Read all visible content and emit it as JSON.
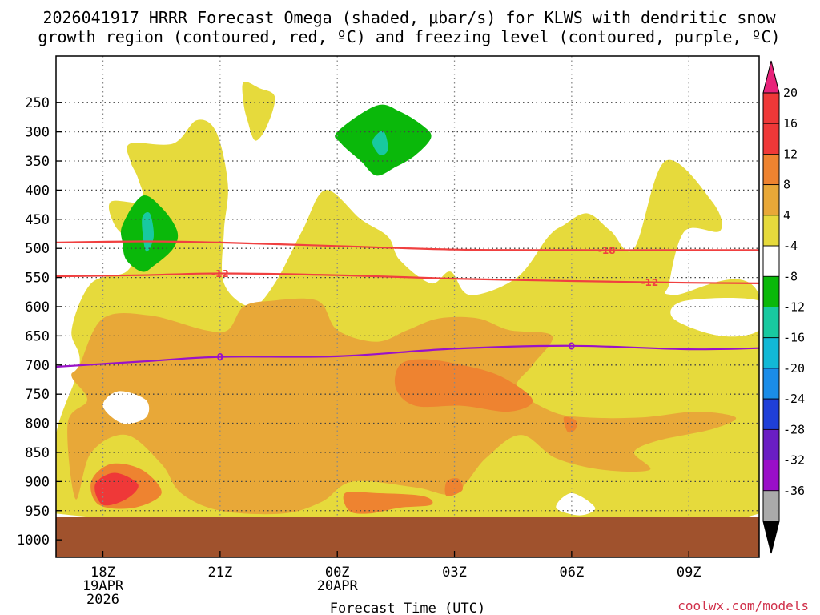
{
  "chart_data": {
    "type": "time-height contour",
    "title_line1": "2026041917 HRRR Forecast Omega (shaded, μbar/s) for KLWS with dendritic snow",
    "title_line2": "growth region (contoured, red, ºC) and freezing level (contoured, purple, ºC)",
    "xlabel": "Forecast Time (UTC)",
    "credit": "coolwx.com/models",
    "x_range_hours": [
      -1.2,
      16.8
    ],
    "y_range_hpa": [
      170,
      1030
    ],
    "x_ticks": [
      {
        "hour": 0,
        "lines": [
          "18Z",
          "19APR",
          "2026"
        ]
      },
      {
        "hour": 3,
        "lines": [
          "21Z"
        ]
      },
      {
        "hour": 6,
        "lines": [
          "00Z",
          "20APR"
        ]
      },
      {
        "hour": 9,
        "lines": [
          "03Z"
        ]
      },
      {
        "hour": 12,
        "lines": [
          "06Z"
        ]
      },
      {
        "hour": 15,
        "lines": [
          "09Z"
        ]
      }
    ],
    "y_ticks": [
      250,
      300,
      350,
      400,
      450,
      500,
      550,
      600,
      650,
      700,
      750,
      800,
      850,
      900,
      950,
      1000
    ],
    "ground_level_hpa": 960,
    "ground_color": "#a0522d",
    "omega_levels": [
      {
        "label": "20",
        "color": "#e8237a"
      },
      {
        "label": "16",
        "color": "#ef3838"
      },
      {
        "label": "12",
        "color": "#ee8330"
      },
      {
        "label": "8",
        "color": "#e8a838"
      },
      {
        "label": "4",
        "color": "#e6da3c"
      },
      {
        "label": "-4",
        "color": "#ffffff"
      },
      {
        "label": "-8",
        "color": "#0ab80a"
      },
      {
        "label": "-12",
        "color": "#18c9a0"
      },
      {
        "label": "-16",
        "color": "#11b8d6"
      },
      {
        "label": "-20",
        "color": "#1a8ce8"
      },
      {
        "label": "-24",
        "color": "#1f3fd8"
      },
      {
        "label": "-28",
        "color": "#6a1ec4"
      },
      {
        "label": "-32",
        "color": "#9a0fc8"
      },
      {
        "label": "-36",
        "color": "#aaaaaa"
      }
    ],
    "omega_regions": [
      {
        "name": "ascent-4-8-upper-left",
        "color": "#e6da3c",
        "points": [
          [
            1.8,
            320
          ],
          [
            2.4,
            280
          ],
          [
            2.9,
            300
          ],
          [
            3.2,
            390
          ],
          [
            3.1,
            470
          ],
          [
            3.1,
            560
          ],
          [
            3.8,
            600
          ],
          [
            4.4,
            560
          ],
          [
            5.1,
            470
          ],
          [
            5.7,
            400
          ],
          [
            6.6,
            450
          ],
          [
            7.3,
            480
          ],
          [
            7.6,
            520
          ],
          [
            8.4,
            560
          ],
          [
            8.9,
            540
          ],
          [
            9.4,
            580
          ],
          [
            10.6,
            550
          ],
          [
            11.4,
            480
          ],
          [
            11.8,
            460
          ],
          [
            12.4,
            440
          ],
          [
            13.0,
            470
          ],
          [
            13.6,
            500
          ],
          [
            14.4,
            350
          ],
          [
            15.6,
            420
          ],
          [
            15.8,
            470
          ],
          [
            14.9,
            470
          ],
          [
            14.5,
            560
          ],
          [
            14.6,
            580
          ],
          [
            16.8,
            580
          ],
          [
            16.8,
            955
          ],
          [
            -1.2,
            955
          ],
          [
            -1.2,
            820
          ],
          [
            -0.6,
            700
          ],
          [
            -0.8,
            640
          ],
          [
            -0.3,
            560
          ],
          [
            0.6,
            540
          ],
          [
            0.8,
            500
          ],
          [
            0.3,
            460
          ],
          [
            0.2,
            420
          ],
          [
            1.0,
            420
          ],
          [
            0.9,
            380
          ],
          [
            0.7,
            350
          ],
          [
            0.7,
            320
          ]
        ]
      },
      {
        "name": "ascent-4-8-upper-center",
        "color": "#e6da3c",
        "points": [
          [
            3.6,
            215
          ],
          [
            4.0,
            225
          ],
          [
            4.4,
            240
          ],
          [
            4.2,
            290
          ],
          [
            3.9,
            315
          ],
          [
            3.7,
            280
          ],
          [
            3.6,
            250
          ]
        ]
      },
      {
        "name": "ascent-8-12-mid",
        "color": "#e8a838",
        "points": [
          [
            -0.6,
            700
          ],
          [
            0.0,
            620
          ],
          [
            1.2,
            615
          ],
          [
            2.6,
            640
          ],
          [
            3.2,
            640
          ],
          [
            3.6,
            600
          ],
          [
            4.3,
            590
          ],
          [
            5.5,
            590
          ],
          [
            6.0,
            640
          ],
          [
            7.0,
            660
          ],
          [
            7.8,
            640
          ],
          [
            8.6,
            620
          ],
          [
            9.6,
            620
          ],
          [
            10.4,
            640
          ],
          [
            11.5,
            650
          ],
          [
            11.0,
            700
          ],
          [
            10.6,
            740
          ],
          [
            11.5,
            780
          ],
          [
            12.4,
            790
          ],
          [
            13.8,
            790
          ],
          [
            15.2,
            780
          ],
          [
            16.2,
            790
          ],
          [
            15.6,
            810
          ],
          [
            14.2,
            830
          ],
          [
            13.6,
            850
          ],
          [
            14.0,
            880
          ],
          [
            12.8,
            880
          ],
          [
            11.6,
            860
          ],
          [
            10.7,
            820
          ],
          [
            9.8,
            860
          ],
          [
            9.0,
            920
          ],
          [
            8.0,
            910
          ],
          [
            6.4,
            900
          ],
          [
            5.6,
            935
          ],
          [
            4.6,
            955
          ],
          [
            3.0,
            950
          ],
          [
            2.0,
            920
          ],
          [
            1.5,
            870
          ],
          [
            0.6,
            820
          ],
          [
            -0.3,
            850
          ],
          [
            -0.7,
            930
          ],
          [
            -0.9,
            800
          ],
          [
            -0.4,
            760
          ],
          [
            -0.8,
            720
          ]
        ]
      },
      {
        "name": "ascent-12-16-a",
        "color": "#ee8330",
        "points": [
          [
            7.6,
            700
          ],
          [
            8.2,
            690
          ],
          [
            9.2,
            700
          ],
          [
            10.2,
            720
          ],
          [
            11.0,
            760
          ],
          [
            10.4,
            780
          ],
          [
            9.2,
            770
          ],
          [
            8.0,
            770
          ],
          [
            7.5,
            740
          ]
        ]
      },
      {
        "name": "ascent-12-16-b",
        "color": "#ee8330",
        "points": [
          [
            6.2,
            920
          ],
          [
            7.0,
            920
          ],
          [
            8.2,
            925
          ],
          [
            8.4,
            940
          ],
          [
            7.6,
            945
          ],
          [
            6.8,
            955
          ],
          [
            6.3,
            950
          ]
        ]
      },
      {
        "name": "ascent-12-16-c",
        "color": "#ee8330",
        "points": [
          [
            8.8,
            900
          ],
          [
            9.1,
            895
          ],
          [
            9.2,
            915
          ],
          [
            8.8,
            925
          ]
        ]
      },
      {
        "name": "ascent-12-16-d",
        "color": "#ee8330",
        "points": [
          [
            11.8,
            790
          ],
          [
            12.1,
            795
          ],
          [
            12.1,
            810
          ],
          [
            11.9,
            815
          ]
        ]
      },
      {
        "name": "ascent-12-16-e",
        "color": "#ee8330",
        "points": [
          [
            -0.3,
            900
          ],
          [
            0.2,
            870
          ],
          [
            1.0,
            880
          ],
          [
            1.5,
            920
          ],
          [
            0.8,
            945
          ],
          [
            -0.1,
            940
          ]
        ]
      },
      {
        "name": "ascent-16-20-core",
        "color": "#ef3838",
        "points": [
          [
            -0.2,
            905
          ],
          [
            0.3,
            885
          ],
          [
            0.9,
            905
          ],
          [
            0.6,
            930
          ],
          [
            0.0,
            940
          ]
        ]
      },
      {
        "name": "descent-4-8-pocket-a",
        "color": "#ffffff",
        "points": [
          [
            0.0,
            770
          ],
          [
            0.4,
            745
          ],
          [
            1.1,
            760
          ],
          [
            1.1,
            790
          ],
          [
            0.5,
            800
          ]
        ]
      },
      {
        "name": "descent-4-8-pocket-b",
        "color": "#ffffff",
        "points": [
          [
            11.6,
            945
          ],
          [
            12.0,
            920
          ],
          [
            12.6,
            945
          ],
          [
            12.2,
            958
          ]
        ]
      },
      {
        "name": "descent-4-8-pocket-c",
        "color": "#ffffff",
        "points": [
          [
            14.9,
            590
          ],
          [
            16.8,
            590
          ],
          [
            16.8,
            640
          ],
          [
            15.8,
            650
          ],
          [
            14.6,
            620
          ]
        ]
      },
      {
        "name": "descent-8-12-a",
        "color": "#0ab80a",
        "points": [
          [
            0.5,
            460
          ],
          [
            1.0,
            410
          ],
          [
            1.5,
            430
          ],
          [
            1.9,
            470
          ],
          [
            1.8,
            500
          ],
          [
            1.3,
            530
          ],
          [
            1.0,
            540
          ],
          [
            0.6,
            520
          ],
          [
            0.5,
            490
          ]
        ]
      },
      {
        "name": "descent-8-12-b",
        "color": "#0ab80a",
        "points": [
          [
            6.0,
            300
          ],
          [
            7.0,
            255
          ],
          [
            7.6,
            265
          ],
          [
            8.2,
            290
          ],
          [
            8.4,
            310
          ],
          [
            8.0,
            340
          ],
          [
            7.5,
            360
          ],
          [
            7.0,
            375
          ],
          [
            6.6,
            350
          ],
          [
            6.1,
            320
          ]
        ]
      },
      {
        "name": "descent-12-16-a",
        "color": "#18c9a0",
        "points": [
          [
            1.0,
            450
          ],
          [
            1.2,
            440
          ],
          [
            1.3,
            480
          ],
          [
            1.1,
            505
          ]
        ]
      },
      {
        "name": "descent-12-16-b",
        "color": "#18c9a0",
        "points": [
          [
            7.0,
            305
          ],
          [
            7.2,
            300
          ],
          [
            7.3,
            330
          ],
          [
            7.1,
            340
          ],
          [
            6.9,
            320
          ]
        ]
      }
    ],
    "contours": [
      {
        "label": "-18",
        "color": "#f04040",
        "label_hour": 12.9,
        "label_text_color": "#f04040",
        "points": [
          [
            -1.2,
            490
          ],
          [
            1.0,
            488
          ],
          [
            3.0,
            490
          ],
          [
            6.0,
            496
          ],
          [
            9.0,
            502
          ],
          [
            12.0,
            503
          ],
          [
            15.0,
            503
          ],
          [
            16.8,
            503
          ]
        ]
      },
      {
        "label": "-12",
        "color": "#f04040",
        "label_hour": 3.0,
        "label_text_color": "#f04040",
        "points": [
          [
            -1.2,
            548
          ],
          [
            1.0,
            546
          ],
          [
            3.0,
            543
          ],
          [
            6.0,
            546
          ],
          [
            9.0,
            552
          ],
          [
            12.0,
            556
          ],
          [
            15.0,
            559
          ],
          [
            16.8,
            560
          ]
        ]
      },
      {
        "label": "-12",
        "color": "#f04040",
        "label_hour": 14.0,
        "label_text_color": "#f04040",
        "points": []
      },
      {
        "label": "0",
        "color": "#9a12c8",
        "label_hour": 3.0,
        "label_text_color": "#9a12c8",
        "points": [
          [
            -1.2,
            703
          ],
          [
            1.0,
            694
          ],
          [
            3.0,
            686
          ],
          [
            6.0,
            685
          ],
          [
            9.0,
            672
          ],
          [
            12.0,
            667
          ],
          [
            15.0,
            673
          ],
          [
            16.8,
            671
          ]
        ]
      },
      {
        "label": "0",
        "color": "#9a12c8",
        "label_hour": 12.0,
        "label_text_color": "#9a12c8",
        "points": []
      }
    ]
  }
}
